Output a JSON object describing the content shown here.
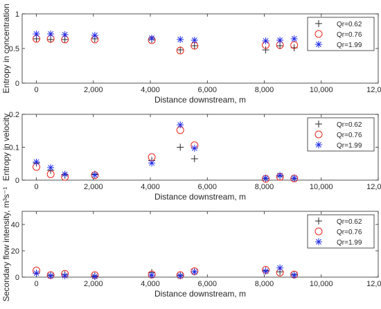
{
  "colors": {
    "qr062": "#262626",
    "qr076": "#e8281e",
    "qr199": "#1f2bea",
    "axis": "#262626"
  },
  "chart_data": [
    {
      "type": "scatter",
      "xlabel": "Distance downstream, m",
      "ylabel": "Entropy in concentration",
      "xlim": [
        -500,
        12000
      ],
      "ylim": [
        0,
        1
      ],
      "xticks": [
        0,
        2000,
        4000,
        6000,
        8000,
        10000,
        12000
      ],
      "xtick_labels": [
        "0",
        "2,000",
        "4,000",
        "6,000",
        "8,000",
        "10,000",
        "12,000"
      ],
      "yticks": [
        0,
        0.5,
        1
      ],
      "ytick_labels": [
        "0",
        "0.5",
        "1"
      ],
      "legend": "top-right",
      "grid": false,
      "series": [
        {
          "name": "Qr=0.62",
          "marker": "plus",
          "color": "#262626",
          "x": [
            0,
            500,
            1000,
            2050,
            4050,
            5050,
            5550,
            8050,
            8550,
            9050
          ],
          "y": [
            0.64,
            0.63,
            0.63,
            0.64,
            0.63,
            0.48,
            0.54,
            0.48,
            0.54,
            0.51
          ]
        },
        {
          "name": "Qr=0.76",
          "marker": "circle",
          "color": "#e8281e",
          "x": [
            0,
            500,
            1000,
            2050,
            4050,
            5050,
            5550,
            8050,
            8550,
            9050
          ],
          "y": [
            0.64,
            0.64,
            0.63,
            0.63,
            0.62,
            0.47,
            0.54,
            0.55,
            0.55,
            0.55
          ]
        },
        {
          "name": "Qr=1.99",
          "marker": "asterisk",
          "color": "#1f2bea",
          "x": [
            0,
            500,
            1000,
            2050,
            4050,
            5050,
            5550,
            8050,
            8550,
            9050
          ],
          "y": [
            0.71,
            0.71,
            0.7,
            0.69,
            0.65,
            0.63,
            0.62,
            0.61,
            0.62,
            0.64
          ]
        }
      ]
    },
    {
      "type": "scatter",
      "xlabel": "Distance downstream, m",
      "ylabel": "Entropy in velocity",
      "xlim": [
        -500,
        12000
      ],
      "ylim": [
        0,
        0.2
      ],
      "xticks": [
        0,
        2000,
        4000,
        6000,
        8000,
        10000,
        12000
      ],
      "xtick_labels": [
        "0",
        "2,000",
        "4,000",
        "6,000",
        "8,000",
        "10,000",
        "12,000"
      ],
      "yticks": [
        0,
        0.1,
        0.2
      ],
      "ytick_labels": [
        "0",
        "0.1",
        "0.2"
      ],
      "legend": "top-right",
      "grid": false,
      "series": [
        {
          "name": "Qr=0.62",
          "marker": "plus",
          "color": "#262626",
          "x": [
            0,
            500,
            1000,
            2050,
            4050,
            5050,
            5550,
            8050,
            8550,
            9050
          ],
          "y": [
            0.052,
            0.03,
            0.015,
            0.018,
            0.06,
            0.1,
            0.065,
            0.005,
            0.012,
            0.005
          ]
        },
        {
          "name": "Qr=0.76",
          "marker": "circle",
          "color": "#e8281e",
          "x": [
            0,
            500,
            1000,
            2050,
            4050,
            5050,
            5550,
            8050,
            8550,
            9050
          ],
          "y": [
            0.04,
            0.018,
            0.01,
            0.015,
            0.07,
            0.152,
            0.106,
            0.004,
            0.01,
            0.005
          ]
        },
        {
          "name": "Qr=1.99",
          "marker": "asterisk",
          "color": "#1f2bea",
          "x": [
            0,
            500,
            1000,
            2050,
            4050,
            5050,
            5550,
            8050,
            8550,
            9050
          ],
          "y": [
            0.055,
            0.038,
            0.018,
            0.016,
            0.052,
            0.168,
            0.097,
            0.006,
            0.014,
            0.006
          ]
        }
      ]
    },
    {
      "type": "scatter",
      "xlabel": "Distance downstream, m",
      "ylabel": "Secondary flow intensity, m³s⁻¹",
      "xlim": [
        -500,
        12000
      ],
      "ylim": [
        0,
        50
      ],
      "xticks": [
        0,
        2000,
        4000,
        6000,
        8000,
        10000,
        12000
      ],
      "xtick_labels": [
        "0",
        "2,000",
        "4,000",
        "6,000",
        "8,000",
        "10,000",
        "12,000"
      ],
      "yticks": [
        0,
        20,
        40
      ],
      "ytick_labels": [
        "0",
        "20",
        "40"
      ],
      "legend": "top-right",
      "grid": false,
      "series": [
        {
          "name": "Qr=0.62",
          "marker": "plus",
          "color": "#262626",
          "x": [
            0,
            500,
            1000,
            2050,
            4050,
            5050,
            5550,
            8050,
            8550,
            9050
          ],
          "y": [
            3,
            1.5,
            2,
            1,
            3.5,
            1.5,
            4,
            5,
            4,
            2
          ]
        },
        {
          "name": "Qr=0.76",
          "marker": "circle",
          "color": "#e8281e",
          "x": [
            0,
            500,
            1000,
            2050,
            4050,
            5050,
            5550,
            8050,
            8550,
            9050
          ],
          "y": [
            5,
            1.5,
            2.5,
            1.5,
            2,
            1.5,
            4.5,
            5.5,
            3.5,
            2
          ]
        },
        {
          "name": "Qr=1.99",
          "marker": "asterisk",
          "color": "#1f2bea",
          "x": [
            0,
            500,
            1000,
            2050,
            4050,
            5050,
            5550,
            8050,
            8550,
            9050
          ],
          "y": [
            3,
            1,
            1,
            0.5,
            1.5,
            1,
            4,
            4.5,
            7,
            1.5
          ]
        }
      ]
    }
  ]
}
